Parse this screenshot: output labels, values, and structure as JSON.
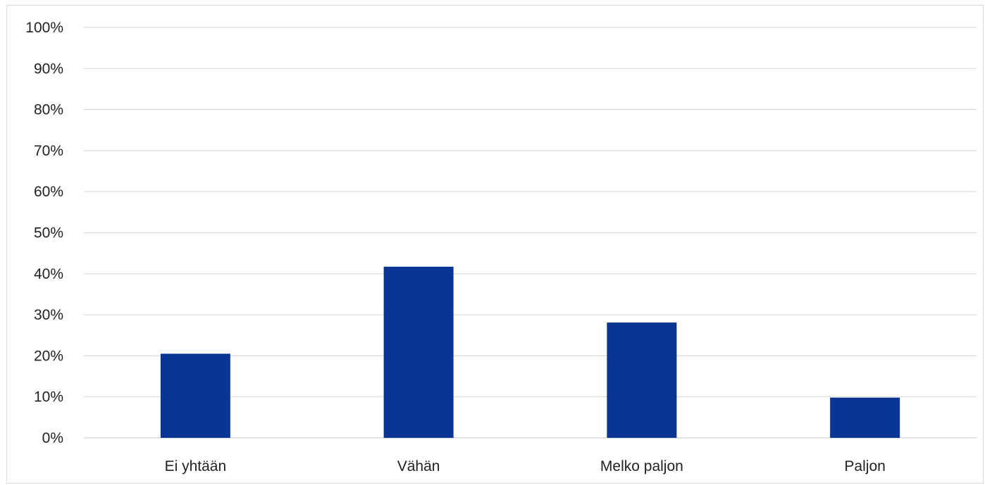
{
  "chart_data": {
    "type": "bar",
    "categories": [
      "Ei yhtään",
      "Vähän",
      "Melko paljon",
      "Paljon"
    ],
    "values": [
      20.5,
      41.7,
      28.1,
      9.8
    ],
    "y_tick_labels": [
      "0%",
      "10%",
      "20%",
      "30%",
      "40%",
      "50%",
      "60%",
      "70%",
      "80%",
      "90%",
      "100%"
    ],
    "ylim": [
      0,
      100
    ],
    "ylabel_unit": "%",
    "title": "",
    "xlabel": "",
    "ylabel": "",
    "grid": "horizontal",
    "legend": "none",
    "bar_color": "#0a3595",
    "grid_color": "#d9d9d9"
  }
}
